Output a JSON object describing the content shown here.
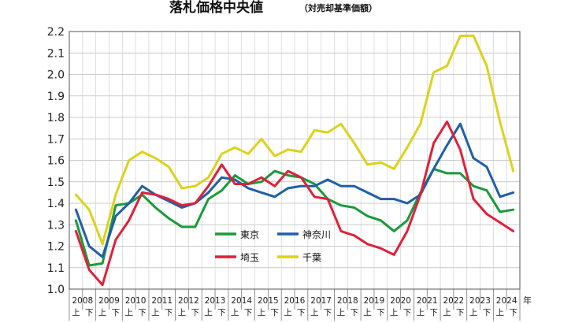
{
  "chart_data": {
    "type": "line",
    "title": "落札価格中央値",
    "subtitle": "（対売却基準価額）",
    "x_unit": "年",
    "half_labels": [
      "上",
      "下"
    ],
    "years": [
      "2008",
      "2009",
      "2010",
      "2011",
      "2012",
      "2013",
      "2014",
      "2015",
      "2016",
      "2017",
      "2018",
      "2019",
      "2020",
      "2021",
      "2022",
      "2023",
      "2024"
    ],
    "y_ticks": [
      "2.2",
      "2.1",
      "2.0",
      "1.9",
      "1.8",
      "1.7",
      "1.6",
      "1.5",
      "1.4",
      "1.3",
      "1.2",
      "1.1",
      "1.0"
    ],
    "ylim": [
      1.0,
      2.2
    ],
    "grid": true,
    "legend_position": "bottom-left inside",
    "series": [
      {
        "name": "東京",
        "color": "#1a9a3a",
        "values": [
          1.32,
          1.11,
          1.12,
          1.39,
          1.4,
          1.44,
          1.38,
          1.33,
          1.29,
          1.29,
          1.42,
          1.46,
          1.53,
          1.49,
          1.5,
          1.55,
          1.53,
          1.52,
          1.49,
          1.42,
          1.39,
          1.38,
          1.34,
          1.32,
          1.27,
          1.32,
          1.45,
          1.56,
          1.54,
          1.54,
          1.48,
          1.46,
          1.36,
          1.37
        ]
      },
      {
        "name": "神奈川",
        "color": "#1f5fa8",
        "values": [
          1.37,
          1.2,
          1.15,
          1.34,
          1.4,
          1.48,
          1.44,
          1.41,
          1.38,
          1.4,
          1.45,
          1.52,
          1.51,
          1.47,
          1.45,
          1.43,
          1.47,
          1.48,
          1.48,
          1.51,
          1.48,
          1.48,
          1.45,
          1.42,
          1.42,
          1.4,
          1.44,
          1.56,
          1.67,
          1.77,
          1.61,
          1.57,
          1.43,
          1.45
        ]
      },
      {
        "name": "埼玉",
        "color": "#e0203a",
        "values": [
          1.27,
          1.09,
          1.02,
          1.23,
          1.32,
          1.45,
          1.44,
          1.42,
          1.39,
          1.4,
          1.48,
          1.58,
          1.49,
          1.49,
          1.52,
          1.48,
          1.55,
          1.52,
          1.43,
          1.42,
          1.27,
          1.25,
          1.21,
          1.19,
          1.16,
          1.27,
          1.44,
          1.68,
          1.78,
          1.65,
          1.42,
          1.35,
          1.31,
          1.27
        ]
      },
      {
        "name": "千葉",
        "color": "#dcd21a",
        "values": [
          1.44,
          1.37,
          1.21,
          1.44,
          1.6,
          1.64,
          1.61,
          1.57,
          1.47,
          1.48,
          1.52,
          1.63,
          1.66,
          1.63,
          1.7,
          1.62,
          1.65,
          1.64,
          1.74,
          1.73,
          1.77,
          1.68,
          1.58,
          1.59,
          1.56,
          1.66,
          1.77,
          2.01,
          2.04,
          2.18,
          2.18,
          2.04,
          1.78,
          1.55
        ]
      }
    ]
  }
}
